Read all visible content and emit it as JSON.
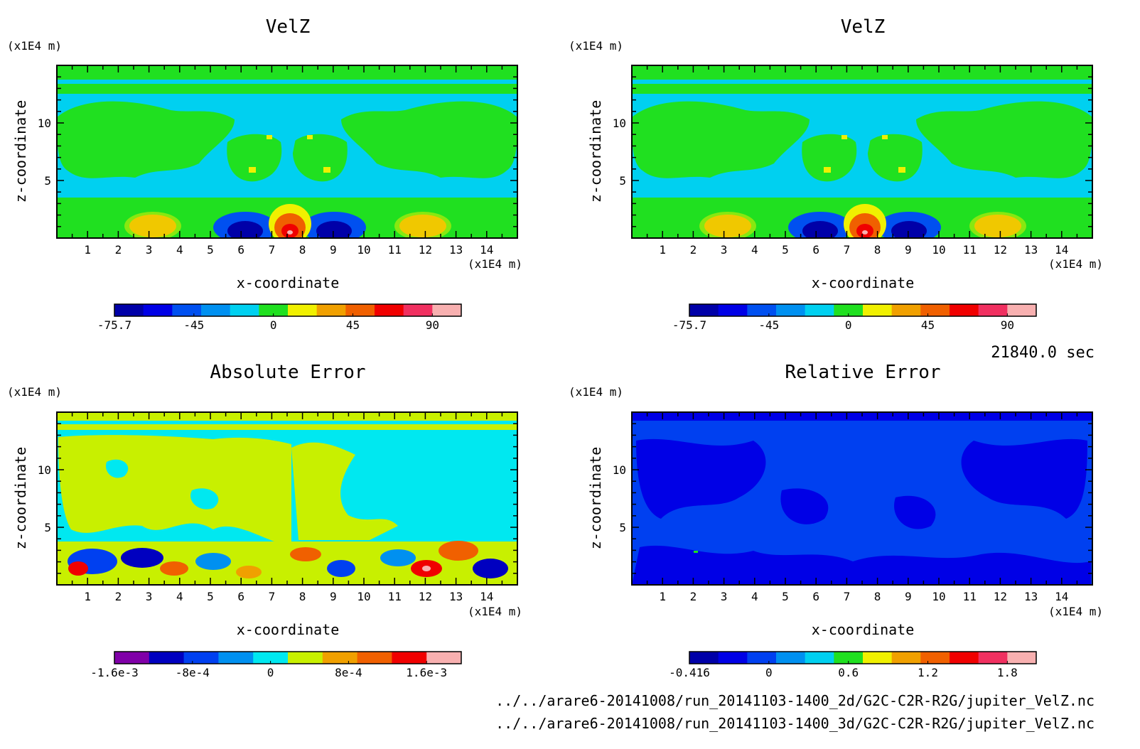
{
  "time_label": "21840.0 sec",
  "file_paths": [
    "../../arare6-20141008/run_20141103-1400_2d/G2C-C2R-R2G/jupiter_VelZ.nc",
    "../../arare6-20141008/run_20141103-1400_3d/G2C-C2R-R2G/jupiter_VelZ.nc"
  ],
  "axis_unit": "(x1E4 m)",
  "chart_data": [
    {
      "type": "heatmap",
      "title": "VelZ",
      "xlabel": "x-coordinate",
      "ylabel": "z-coordinate",
      "x_unit": "(x1E4 m)",
      "y_unit": "(x1E4 m)",
      "xlim": [
        0,
        15
      ],
      "ylim": [
        0,
        15
      ],
      "x_ticks": [
        "1",
        "2",
        "3",
        "4",
        "5",
        "6",
        "7",
        "8",
        "9",
        "10",
        "11",
        "12",
        "13",
        "14"
      ],
      "y_ticks": [
        "5",
        "10"
      ],
      "colorbar": {
        "tick_labels": [
          "-75.7",
          "-45",
          "0",
          "45",
          "90"
        ],
        "colors": [
          "#0000a8",
          "#0000e6",
          "#0050f0",
          "#0090f0",
          "#00d0f0",
          "#20e020",
          "#f0f000",
          "#f0a000",
          "#f06000",
          "#f00000",
          "#f03060",
          "#f8b0b0"
        ]
      }
    },
    {
      "type": "heatmap",
      "title": "VelZ",
      "xlabel": "x-coordinate",
      "ylabel": "z-coordinate",
      "x_unit": "(x1E4 m)",
      "y_unit": "(x1E4 m)",
      "xlim": [
        0,
        15
      ],
      "ylim": [
        0,
        15
      ],
      "x_ticks": [
        "1",
        "2",
        "3",
        "4",
        "5",
        "6",
        "7",
        "8",
        "9",
        "10",
        "11",
        "12",
        "13",
        "14"
      ],
      "y_ticks": [
        "5",
        "10"
      ],
      "colorbar": {
        "tick_labels": [
          "-75.7",
          "-45",
          "0",
          "45",
          "90"
        ],
        "colors": [
          "#0000a8",
          "#0000e6",
          "#0050f0",
          "#0090f0",
          "#00d0f0",
          "#20e020",
          "#f0f000",
          "#f0a000",
          "#f06000",
          "#f00000",
          "#f03060",
          "#f8b0b0"
        ]
      }
    },
    {
      "type": "heatmap",
      "title": "Absolute Error",
      "xlabel": "x-coordinate",
      "ylabel": "z-coordinate",
      "x_unit": "(x1E4 m)",
      "y_unit": "(x1E4 m)",
      "xlim": [
        0,
        15
      ],
      "ylim": [
        0,
        15
      ],
      "x_ticks": [
        "1",
        "2",
        "3",
        "4",
        "5",
        "6",
        "7",
        "8",
        "9",
        "10",
        "11",
        "12",
        "13",
        "14"
      ],
      "y_ticks": [
        "5",
        "10"
      ],
      "colorbar": {
        "tick_labels": [
          "-1.6e-3",
          "-8e-4",
          "0",
          "8e-4",
          "1.6e-3"
        ],
        "colors": [
          "#8000a8",
          "#0000c0",
          "#0040f0",
          "#0090f0",
          "#00e8f0",
          "#c8f000",
          "#f0a000",
          "#f06000",
          "#f00000",
          "#f8b0b0"
        ]
      }
    },
    {
      "type": "heatmap",
      "title": "Relative Error",
      "xlabel": "x-coordinate",
      "ylabel": "z-coordinate",
      "x_unit": "(x1E4 m)",
      "y_unit": "(x1E4 m)",
      "xlim": [
        0,
        15
      ],
      "ylim": [
        0,
        15
      ],
      "x_ticks": [
        "1",
        "2",
        "3",
        "4",
        "5",
        "6",
        "7",
        "8",
        "9",
        "10",
        "11",
        "12",
        "13",
        "14"
      ],
      "y_ticks": [
        "5",
        "10"
      ],
      "colorbar": {
        "tick_labels": [
          "-0.416",
          "0",
          "0.6",
          "1.2",
          "1.8"
        ],
        "colors": [
          "#0000a8",
          "#0000e6",
          "#0040f0",
          "#0090f0",
          "#00d0f0",
          "#20e020",
          "#f0f000",
          "#f0a000",
          "#f06000",
          "#f00000",
          "#f03060",
          "#f8b0b0"
        ]
      }
    }
  ]
}
